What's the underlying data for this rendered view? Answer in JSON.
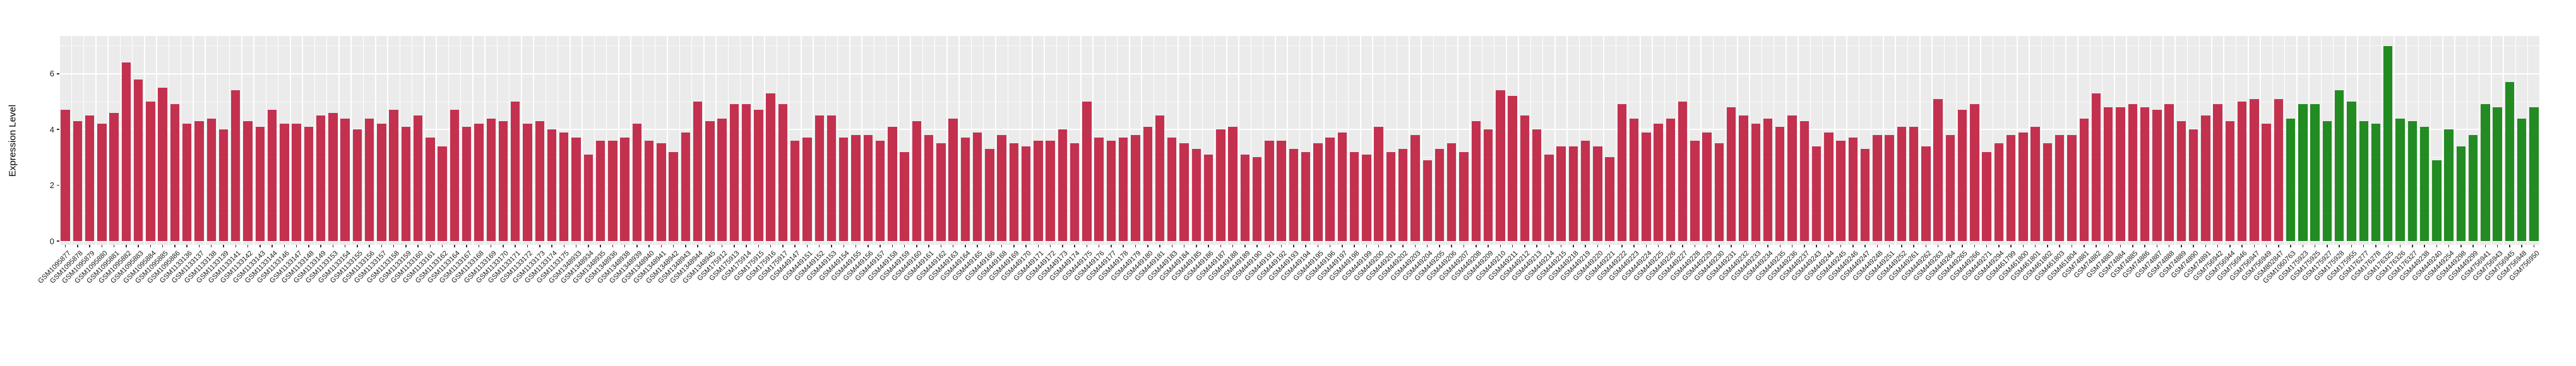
{
  "chart": {
    "panel_background": "#EBEBEB",
    "grid_color": "#FFFFFF",
    "tick_color": "#333333",
    "axis_text_color": "#1a1a1a"
  },
  "chart_data": {
    "type": "bar",
    "title": "",
    "xlabel": "",
    "ylabel": "Expression Level",
    "yticks": [
      0,
      2,
      4,
      6
    ],
    "yminor": [
      1,
      3,
      5,
      7
    ],
    "ylim": [
      0,
      7.35
    ],
    "grid": true,
    "legend": false,
    "group_colors": {
      "group1": "#C3314F",
      "group2": "#228B22"
    },
    "green_start_index": 183,
    "categories": [
      "GSM1095877",
      "GSM1095878",
      "GSM1095879",
      "GSM1095880",
      "GSM1095881",
      "GSM1095882",
      "GSM1095883",
      "GSM1095884",
      "GSM1095885",
      "GSM1095886",
      "GSM1133136",
      "GSM1133137",
      "GSM1133138",
      "GSM1133139",
      "GSM1133141",
      "GSM1133142",
      "GSM1133143",
      "GSM1133144",
      "GSM1133146",
      "GSM1133147",
      "GSM1133148",
      "GSM1133149",
      "GSM1133153",
      "GSM1133154",
      "GSM1133155",
      "GSM1133156",
      "GSM1133157",
      "GSM1133158",
      "GSM1133159",
      "GSM1133160",
      "GSM1133161",
      "GSM1133162",
      "GSM1133164",
      "GSM1133167",
      "GSM1133168",
      "GSM1133169",
      "GSM1133170",
      "GSM1133171",
      "GSM1133172",
      "GSM1133173",
      "GSM1133174",
      "GSM1133175",
      "GSM1348933",
      "GSM1348934",
      "GSM1348935",
      "GSM1348936",
      "GSM1348938",
      "GSM1348939",
      "GSM1348940",
      "GSM1348941",
      "GSM1348942",
      "GSM1348943",
      "GSM1348944",
      "GSM1348945",
      "GSM175912",
      "GSM175913",
      "GSM175914",
      "GSM175915",
      "GSM175916",
      "GSM175917",
      "GSM449147",
      "GSM449151",
      "GSM449152",
      "GSM449153",
      "GSM449154",
      "GSM449155",
      "GSM449156",
      "GSM449157",
      "GSM449158",
      "GSM449159",
      "GSM449160",
      "GSM449161",
      "GSM449162",
      "GSM449163",
      "GSM449164",
      "GSM449165",
      "GSM449166",
      "GSM449168",
      "GSM449169",
      "GSM449170",
      "GSM449171",
      "GSM449172",
      "GSM449173",
      "GSM449174",
      "GSM449175",
      "GSM449176",
      "GSM449177",
      "GSM449178",
      "GSM449179",
      "GSM449180",
      "GSM449181",
      "GSM449183",
      "GSM449184",
      "GSM449185",
      "GSM449186",
      "GSM449187",
      "GSM449188",
      "GSM449189",
      "GSM449190",
      "GSM449191",
      "GSM449192",
      "GSM449193",
      "GSM449194",
      "GSM449195",
      "GSM449196",
      "GSM449197",
      "GSM449198",
      "GSM449199",
      "GSM449200",
      "GSM449201",
      "GSM449202",
      "GSM449203",
      "GSM449204",
      "GSM449205",
      "GSM449206",
      "GSM449207",
      "GSM449208",
      "GSM449209",
      "GSM449210",
      "GSM449211",
      "GSM449212",
      "GSM449213",
      "GSM449214",
      "GSM449215",
      "GSM449218",
      "GSM449219",
      "GSM449220",
      "GSM449221",
      "GSM449222",
      "GSM449223",
      "GSM449224",
      "GSM449225",
      "GSM449226",
      "GSM449227",
      "GSM449228",
      "GSM449229",
      "GSM449230",
      "GSM449231",
      "GSM449232",
      "GSM449233",
      "GSM449234",
      "GSM449235",
      "GSM449236",
      "GSM449237",
      "GSM449243",
      "GSM449244",
      "GSM449245",
      "GSM449246",
      "GSM449247",
      "GSM449248",
      "GSM449251",
      "GSM449252",
      "GSM449261",
      "GSM449262",
      "GSM449263",
      "GSM449264",
      "GSM449265",
      "GSM449266",
      "GSM449271",
      "GSM449294",
      "GSM461799",
      "GSM461800",
      "GSM461801",
      "GSM461802",
      "GSM461803",
      "GSM461804",
      "GSM74881",
      "GSM74882",
      "GSM74883",
      "GSM74884",
      "GSM74885",
      "GSM74886",
      "GSM74887",
      "GSM74888",
      "GSM74889",
      "GSM74890",
      "GSM74891",
      "GSM756942",
      "GSM756944",
      "GSM756946",
      "GSM756947",
      "GSM756949",
      "GSM802847",
      "GSM1060763",
      "GSM175923",
      "GSM175925",
      "GSM175927",
      "GSM175928",
      "GSM175955",
      "GSM176277",
      "GSM176278",
      "GSM176325",
      "GSM176326",
      "GSM176327",
      "GSM449238",
      "GSM449240",
      "GSM449254",
      "GSM449298",
      "GSM449299",
      "GSM756941",
      "GSM756943",
      "GSM756945",
      "GSM756948",
      "GSM756950"
    ],
    "values": [
      4.7,
      4.3,
      4.5,
      4.2,
      4.6,
      6.4,
      5.8,
      5.0,
      5.5,
      4.9,
      4.2,
      4.3,
      4.4,
      4.0,
      5.4,
      4.3,
      4.1,
      4.7,
      4.2,
      4.2,
      4.1,
      4.5,
      4.6,
      4.4,
      4.0,
      4.4,
      4.2,
      4.7,
      4.1,
      4.5,
      3.7,
      3.4,
      4.7,
      4.1,
      4.2,
      4.4,
      4.3,
      5.0,
      4.2,
      4.3,
      4.0,
      3.9,
      3.7,
      3.1,
      3.6,
      3.6,
      3.7,
      4.2,
      3.6,
      3.5,
      3.2,
      3.9,
      5.0,
      4.3,
      4.4,
      4.9,
      4.9,
      4.7,
      5.3,
      4.9,
      3.6,
      3.7,
      4.5,
      4.5,
      3.7,
      3.8,
      3.8,
      3.6,
      4.1,
      3.2,
      4.3,
      3.8,
      3.5,
      4.4,
      3.7,
      3.9,
      3.3,
      3.8,
      3.5,
      3.4,
      3.6,
      3.6,
      4.0,
      3.5,
      5.0,
      3.7,
      3.6,
      3.7,
      3.8,
      4.1,
      4.5,
      3.7,
      3.5,
      3.3,
      3.1,
      4.0,
      4.1,
      3.1,
      3.0,
      3.6,
      3.6,
      3.3,
      3.2,
      3.5,
      3.7,
      3.9,
      3.2,
      3.1,
      4.1,
      3.2,
      3.3,
      3.8,
      2.9,
      3.3,
      3.5,
      3.2,
      4.3,
      4.0,
      5.4,
      5.2,
      4.5,
      4.0,
      3.1,
      3.4,
      3.4,
      3.6,
      3.4,
      3.0,
      4.9,
      4.4,
      3.9,
      4.2,
      4.4,
      5.0,
      3.6,
      3.9,
      3.5,
      4.8,
      4.5,
      4.2,
      4.4,
      4.1,
      4.5,
      4.3,
      3.4,
      3.9,
      3.6,
      3.7,
      3.3,
      3.8,
      3.8,
      4.1,
      4.1,
      3.4,
      5.1,
      3.8,
      4.7,
      4.9,
      3.2,
      3.5,
      3.8,
      3.9,
      4.1,
      3.5,
      3.8,
      3.8,
      4.4,
      5.3,
      4.8,
      4.8,
      4.9,
      4.8,
      4.7,
      4.9,
      4.3,
      4.0,
      4.5,
      4.9,
      4.3,
      5.0,
      5.1,
      4.2,
      5.1,
      4.4,
      4.9,
      4.9,
      4.3,
      5.4,
      5.0,
      4.3,
      4.2,
      7.0,
      4.4,
      4.3,
      4.1,
      2.9,
      4.0,
      3.4,
      3.8,
      4.9,
      4.8,
      5.7,
      4.4,
      4.8
    ]
  }
}
